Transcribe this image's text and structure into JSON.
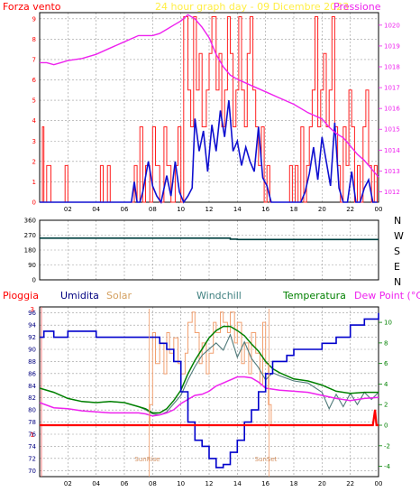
{
  "chart_data": [
    {
      "type": "line",
      "title": "24 hour graph day - 09 Dicembre 2023",
      "left_label": "Forza vento",
      "right_label": "Pressione",
      "x_ticks": [
        "02",
        "04",
        "06",
        "08",
        "10",
        "12",
        "14",
        "16",
        "18",
        "20",
        "22",
        "00"
      ],
      "left_ticks": [
        0,
        1,
        2,
        3,
        4,
        5,
        6,
        7,
        8,
        9
      ],
      "right_ticks": [
        1012,
        1013,
        1014,
        1015,
        1016,
        1017,
        1018,
        1019,
        1020
      ],
      "ylim_left": [
        0,
        9.3
      ],
      "ylim_right": [
        1011.5,
        1020.6
      ],
      "colors": {
        "gust": "#ff2020",
        "wind": "#1010d0",
        "pressure": "#ee22ee"
      },
      "series": [
        {
          "key": "gust",
          "x": [
            0,
            0.2,
            0.3,
            0.5,
            0.8,
            1.0,
            1.8,
            2.0,
            2.2,
            4.2,
            4.3,
            4.5,
            4.8,
            5.0,
            5.3,
            6.5,
            6.7,
            6.9,
            7.1,
            7.3,
            7.5,
            7.8,
            8.0,
            8.2,
            8.5,
            8.8,
            9.0,
            9.3,
            9.6,
            9.8,
            10.0,
            10.2,
            10.5,
            10.7,
            10.9,
            11.1,
            11.3,
            11.5,
            11.8,
            12.0,
            12.2,
            12.5,
            12.7,
            12.9,
            13.1,
            13.3,
            13.5,
            13.7,
            13.9,
            14.1,
            14.3,
            14.5,
            14.7,
            14.9,
            15.1,
            15.3,
            15.5,
            15.7,
            15.9,
            16.1,
            16.3,
            16.5,
            17.5,
            17.7,
            17.9,
            18.1,
            18.3,
            18.5,
            18.7,
            18.9,
            19.1,
            19.3,
            19.5,
            19.7,
            19.9,
            20.1,
            20.3,
            20.5,
            20.7,
            20.9,
            21.1,
            21.3,
            21.5,
            21.7,
            21.9,
            22.1,
            22.3,
            22.5,
            22.7,
            22.9,
            23.1,
            23.3,
            23.5,
            23.7,
            23.9
          ],
          "y": [
            0,
            3.7,
            0,
            1.8,
            0,
            0,
            1.8,
            0,
            0,
            0,
            1.8,
            0,
            1.8,
            0,
            0,
            0,
            1.8,
            0,
            3.7,
            0,
            1.8,
            0,
            3.7,
            1.8,
            0,
            3.7,
            1.8,
            0,
            1.8,
            3.7,
            0,
            9.1,
            5.5,
            3.7,
            9.1,
            5.5,
            7.3,
            3.7,
            5.5,
            7.3,
            9.1,
            5.5,
            7.3,
            3.7,
            5.5,
            9.1,
            7.3,
            3.7,
            5.5,
            9.1,
            5.5,
            3.7,
            7.3,
            9.1,
            5.5,
            3.7,
            1.8,
            3.7,
            0,
            1.8,
            0,
            0,
            0,
            1.8,
            0,
            1.8,
            0,
            3.7,
            0,
            1.8,
            3.7,
            5.5,
            9.1,
            3.7,
            5.5,
            7.3,
            3.7,
            5.5,
            9.1,
            3.7,
            1.8,
            0,
            3.7,
            1.8,
            5.5,
            3.7,
            0,
            1.8,
            0,
            3.7,
            5.5,
            1.8,
            0,
            1.8,
            0
          ]
        },
        {
          "key": "wind",
          "x": [
            0,
            6.5,
            6.7,
            6.9,
            7.1,
            7.3,
            7.7,
            8.0,
            8.3,
            8.6,
            9.0,
            9.3,
            9.6,
            9.9,
            10.2,
            10.5,
            10.8,
            11.0,
            11.3,
            11.6,
            11.9,
            12.2,
            12.5,
            12.8,
            13.1,
            13.4,
            13.7,
            14.0,
            14.3,
            14.6,
            14.9,
            15.2,
            15.5,
            15.8,
            16.1,
            16.4,
            16.7,
            18.5,
            18.8,
            19.1,
            19.4,
            19.7,
            20.0,
            20.3,
            20.6,
            20.9,
            21.2,
            21.5,
            21.8,
            22.1,
            22.4,
            22.7,
            23.0,
            23.3,
            23.6,
            23.9
          ],
          "y": [
            0,
            0,
            1,
            0,
            0,
            0.5,
            2,
            0.8,
            0.3,
            0,
            1.3,
            0.3,
            2,
            0.5,
            0,
            0.3,
            0.7,
            4.1,
            2.5,
            3.5,
            1.5,
            3.8,
            2.5,
            4.5,
            3.2,
            5,
            2.5,
            3,
            1.8,
            2.7,
            2,
            1.5,
            3.7,
            1.2,
            0.8,
            0,
            0,
            0,
            0.5,
            1.4,
            2.7,
            1.1,
            3.2,
            2,
            0.8,
            3.9,
            0.7,
            0,
            0,
            1.5,
            0,
            0,
            0.7,
            1.1,
            0,
            0
          ]
        },
        {
          "key": "pressure",
          "x": [
            0,
            0.5,
            1,
            1.5,
            2,
            3,
            4,
            5,
            6,
            7,
            8,
            8.5,
            9,
            9.5,
            10,
            10.5,
            11,
            11.5,
            12,
            12.5,
            13,
            13.5,
            14,
            15,
            16,
            17,
            18,
            19,
            20,
            20.5,
            21,
            21.5,
            22,
            22.5,
            23,
            23.5,
            24
          ],
          "y": [
            1018.2,
            1018.2,
            1018.1,
            1018.2,
            1018.3,
            1018.4,
            1018.6,
            1018.9,
            1019.2,
            1019.5,
            1019.5,
            1019.6,
            1019.8,
            1020.0,
            1020.2,
            1020.5,
            1020.3,
            1019.9,
            1019.4,
            1018.6,
            1018.0,
            1017.6,
            1017.4,
            1017.1,
            1016.8,
            1016.5,
            1016.2,
            1015.8,
            1015.5,
            1015.1,
            1014.8,
            1014.6,
            1014.2,
            1013.8,
            1013.5,
            1013.1,
            1012.7
          ]
        }
      ]
    },
    {
      "type": "line",
      "title": "",
      "y_ticks": [
        0,
        90,
        180,
        270,
        360
      ],
      "ylim": [
        0,
        360
      ],
      "direction_labels": [
        "N",
        "W",
        "S",
        "E",
        "N"
      ],
      "color": "#004040",
      "series": [
        {
          "key": "direction",
          "x": [
            0,
            2,
            4,
            6,
            8,
            10,
            12,
            13,
            13.5,
            14,
            16,
            18,
            20,
            22,
            24
          ],
          "y": [
            252,
            252,
            252,
            252,
            252,
            252,
            252,
            252,
            246,
            244,
            244,
            244,
            244,
            244,
            244
          ]
        }
      ]
    },
    {
      "type": "line",
      "title": "",
      "header_labels": [
        "Pioggia",
        "Umidita",
        "Solar",
        "Windchill",
        "Temperatura",
        "Dew Point (°C)"
      ],
      "header_colors": [
        "#ff0000",
        "#000080",
        "#d4a060",
        "#408080",
        "#008000",
        "#ee22ee"
      ],
      "left_ticks": [
        70,
        72,
        74,
        76,
        78,
        80,
        82,
        84,
        86,
        88,
        90,
        92,
        94,
        96
      ],
      "right_ticks": [
        -4,
        -2,
        0,
        2,
        4,
        6,
        8,
        10
      ],
      "rain_axis_marks": [
        "3",
        "1"
      ],
      "ylim_left": [
        69,
        97
      ],
      "ylim_right": [
        -5,
        11.5
      ],
      "annotations": [
        {
          "text": "SunRise",
          "x": 7.75
        },
        {
          "text": "SunSet",
          "x": 16.25
        }
      ],
      "series": [
        {
          "key": "humidity",
          "color": "#0000cc",
          "x": [
            0,
            0.3,
            1,
            1.5,
            2,
            3,
            4,
            5,
            6,
            7,
            8,
            8.5,
            9,
            9.5,
            10,
            10.5,
            11,
            11.5,
            12,
            12.5,
            13,
            13.5,
            14,
            14.5,
            15,
            15.5,
            16,
            16.5,
            17,
            17.5,
            18,
            19,
            20,
            21,
            22,
            23,
            24
          ],
          "y": [
            92,
            93,
            92,
            92,
            93,
            93,
            92,
            92,
            92,
            92,
            92,
            91,
            90,
            88,
            83,
            78,
            75,
            74,
            72,
            70.5,
            71,
            73,
            75,
            78,
            80,
            83,
            86,
            88,
            88,
            89,
            90,
            90,
            91,
            92,
            94,
            95,
            96
          ]
        },
        {
          "key": "temperature",
          "color": "#008000",
          "x": [
            0,
            1,
            2,
            3,
            4,
            5,
            6,
            7,
            7.5,
            8,
            8.5,
            9,
            9.5,
            10,
            10.5,
            11,
            11.5,
            12,
            12.5,
            13,
            13.5,
            14,
            14.5,
            15,
            15.5,
            16,
            16.5,
            17,
            18,
            19,
            20,
            21,
            22,
            23,
            24
          ],
          "y": [
            3.6,
            3.2,
            2.6,
            2.3,
            2.2,
            2.3,
            2.2,
            1.8,
            1.6,
            1.2,
            1.2,
            1.6,
            2.4,
            3.4,
            5,
            6.3,
            7.4,
            8.5,
            9.2,
            9.6,
            9.6,
            9.2,
            8.7,
            7.9,
            7.2,
            6.2,
            5.5,
            5.1,
            4.5,
            4.3,
            3.9,
            3.3,
            3.1,
            3.2,
            3.2
          ]
        },
        {
          "key": "windchill",
          "color": "#507a7a",
          "x": [
            0,
            1,
            2,
            3,
            4,
            5,
            6,
            7,
            7.5,
            8,
            8.5,
            9,
            9.5,
            10,
            10.5,
            11,
            11.5,
            12,
            12.5,
            13,
            13.5,
            14,
            14.5,
            15,
            15.5,
            16,
            16.5,
            17,
            18,
            19,
            20,
            20.5,
            21,
            21.5,
            22,
            22.5,
            23,
            23.5,
            24
          ],
          "y": [
            3.6,
            3.2,
            2.6,
            2.3,
            2.2,
            2.3,
            2.2,
            1.8,
            1.5,
            1.1,
            1,
            1.3,
            2.1,
            2.9,
            4.4,
            5.7,
            6.8,
            7.4,
            8,
            7.3,
            8.8,
            6.6,
            8.1,
            6.5,
            5.6,
            4.4,
            5.1,
            4.8,
            4.3,
            4.1,
            3.2,
            1.6,
            3,
            1.8,
            3.1,
            2,
            3.2,
            2.5,
            3.2
          ]
        },
        {
          "key": "dewpoint",
          "color": "#ee22ee",
          "x": [
            0,
            1,
            2,
            3,
            4,
            5,
            6,
            7,
            7.5,
            8,
            8.5,
            9,
            9.5,
            10,
            10.5,
            11,
            11.5,
            12,
            12.5,
            13,
            13.5,
            14,
            14.5,
            15,
            15.5,
            16,
            17,
            18,
            19,
            20,
            21,
            22,
            23,
            24
          ],
          "y": [
            2.2,
            1.7,
            1.6,
            1.4,
            1.3,
            1.2,
            1.2,
            1.2,
            1.1,
            0.9,
            1,
            1.2,
            1.5,
            2.1,
            2.5,
            2.9,
            3,
            3.3,
            3.8,
            4.1,
            4.4,
            4.7,
            4.7,
            4.6,
            4.2,
            3.6,
            3.4,
            3.3,
            3.2,
            2.9,
            2.6,
            2.4,
            2.6,
            2.7
          ]
        },
        {
          "key": "solar",
          "color": "#f2a070",
          "x": [
            7.5,
            7.8,
            8,
            8.2,
            8.5,
            8.8,
            9,
            9.2,
            9.5,
            9.8,
            10,
            10.3,
            10.5,
            10.8,
            11,
            11.3,
            11.5,
            11.8,
            12,
            12.3,
            12.5,
            12.8,
            13,
            13.3,
            13.5,
            13.8,
            14,
            14.3,
            14.5,
            14.8,
            15,
            15.3,
            15.6,
            15.8,
            16,
            16.2,
            16.4
          ],
          "y": [
            0,
            2,
            9,
            6,
            8,
            5,
            9,
            7,
            8.5,
            6,
            5,
            7,
            10,
            11,
            9,
            6,
            8,
            5,
            7,
            10,
            9,
            11,
            10,
            9,
            11,
            8,
            10,
            6,
            8,
            5,
            9,
            7,
            4,
            10,
            6,
            2,
            0
          ]
        },
        {
          "key": "rain",
          "color": "#ff0000",
          "x": [
            0,
            23.6,
            23.75,
            23.85,
            24
          ],
          "y": [
            0,
            0,
            1.5,
            0,
            0
          ]
        }
      ]
    }
  ]
}
